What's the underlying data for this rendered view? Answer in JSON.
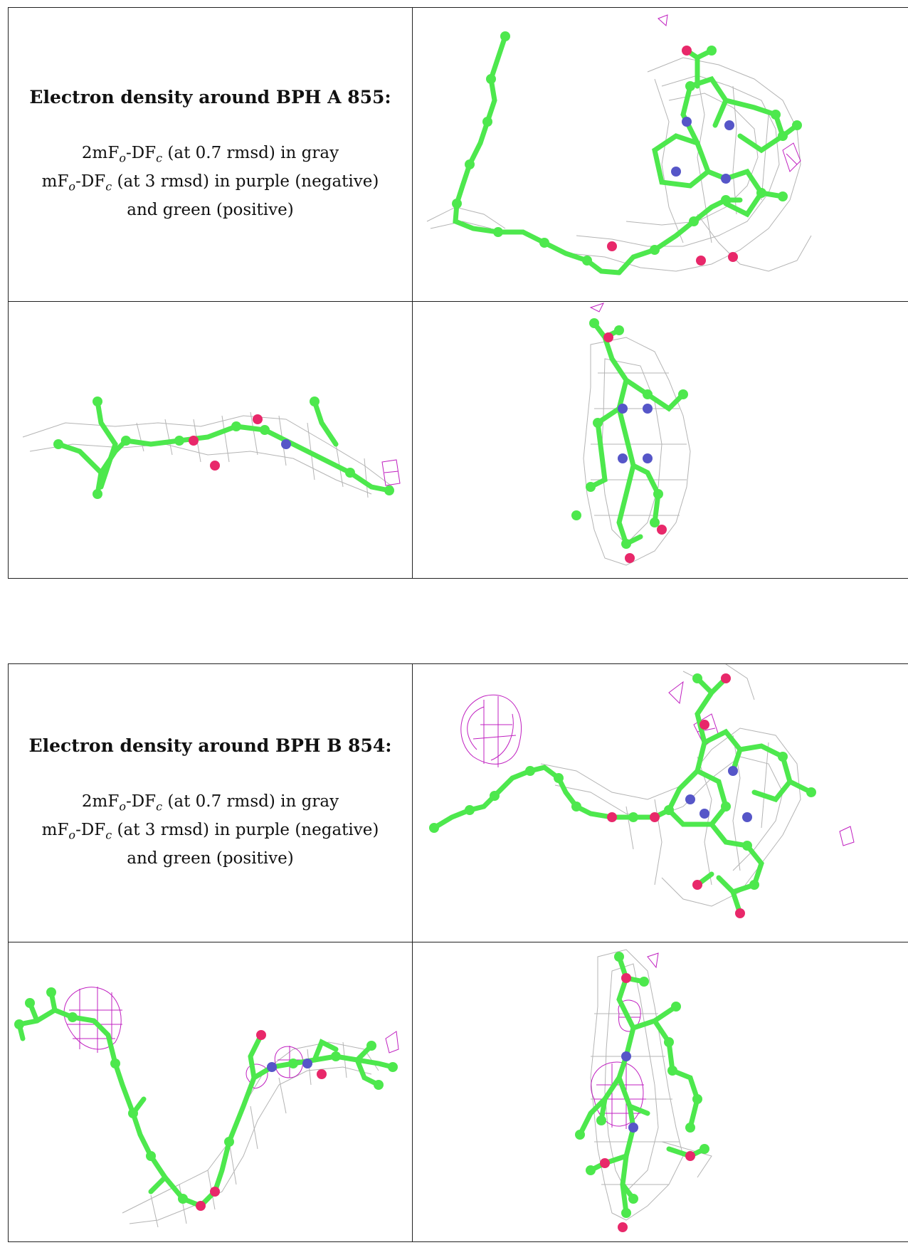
{
  "section_a": {
    "heading": "Electron density around BPH A 855:",
    "line1_pre": "2mF",
    "line1_sub1": "o",
    "line1_mid": "-DF",
    "line1_sub2": "c",
    "line1_post": " (at 0.7 rmsd) in gray",
    "line2_pre": "mF",
    "line2_sub1": "o",
    "line2_mid": "-DF",
    "line2_sub2": "c",
    "line2_post": " (at 3 rmsd) in purple (negative)",
    "line3": "and green (positive)"
  },
  "section_b": {
    "heading": "Electron density around BPH B 854:",
    "line1_pre": "2mF",
    "line1_sub1": "o",
    "line1_mid": "-DF",
    "line1_sub2": "c",
    "line1_post": " (at 0.7 rmsd) in gray",
    "line2_pre": "mF",
    "line2_sub1": "o",
    "line2_mid": "-DF",
    "line2_sub2": "c",
    "line2_post": " (at 3 rmsd) in purple (negative)",
    "line3": "and green (positive)"
  },
  "colors": {
    "atom_carbon": "#4de84d",
    "atom_nitrogen": "#5656c8",
    "atom_oxygen": "#e8286a",
    "mesh_2fofc": "#b4b4b4",
    "mesh_fofc_negative": "#c020c0",
    "mesh_fofc_positive": "#20c020"
  },
  "views": [
    "face-on",
    "edge-on",
    "side"
  ]
}
